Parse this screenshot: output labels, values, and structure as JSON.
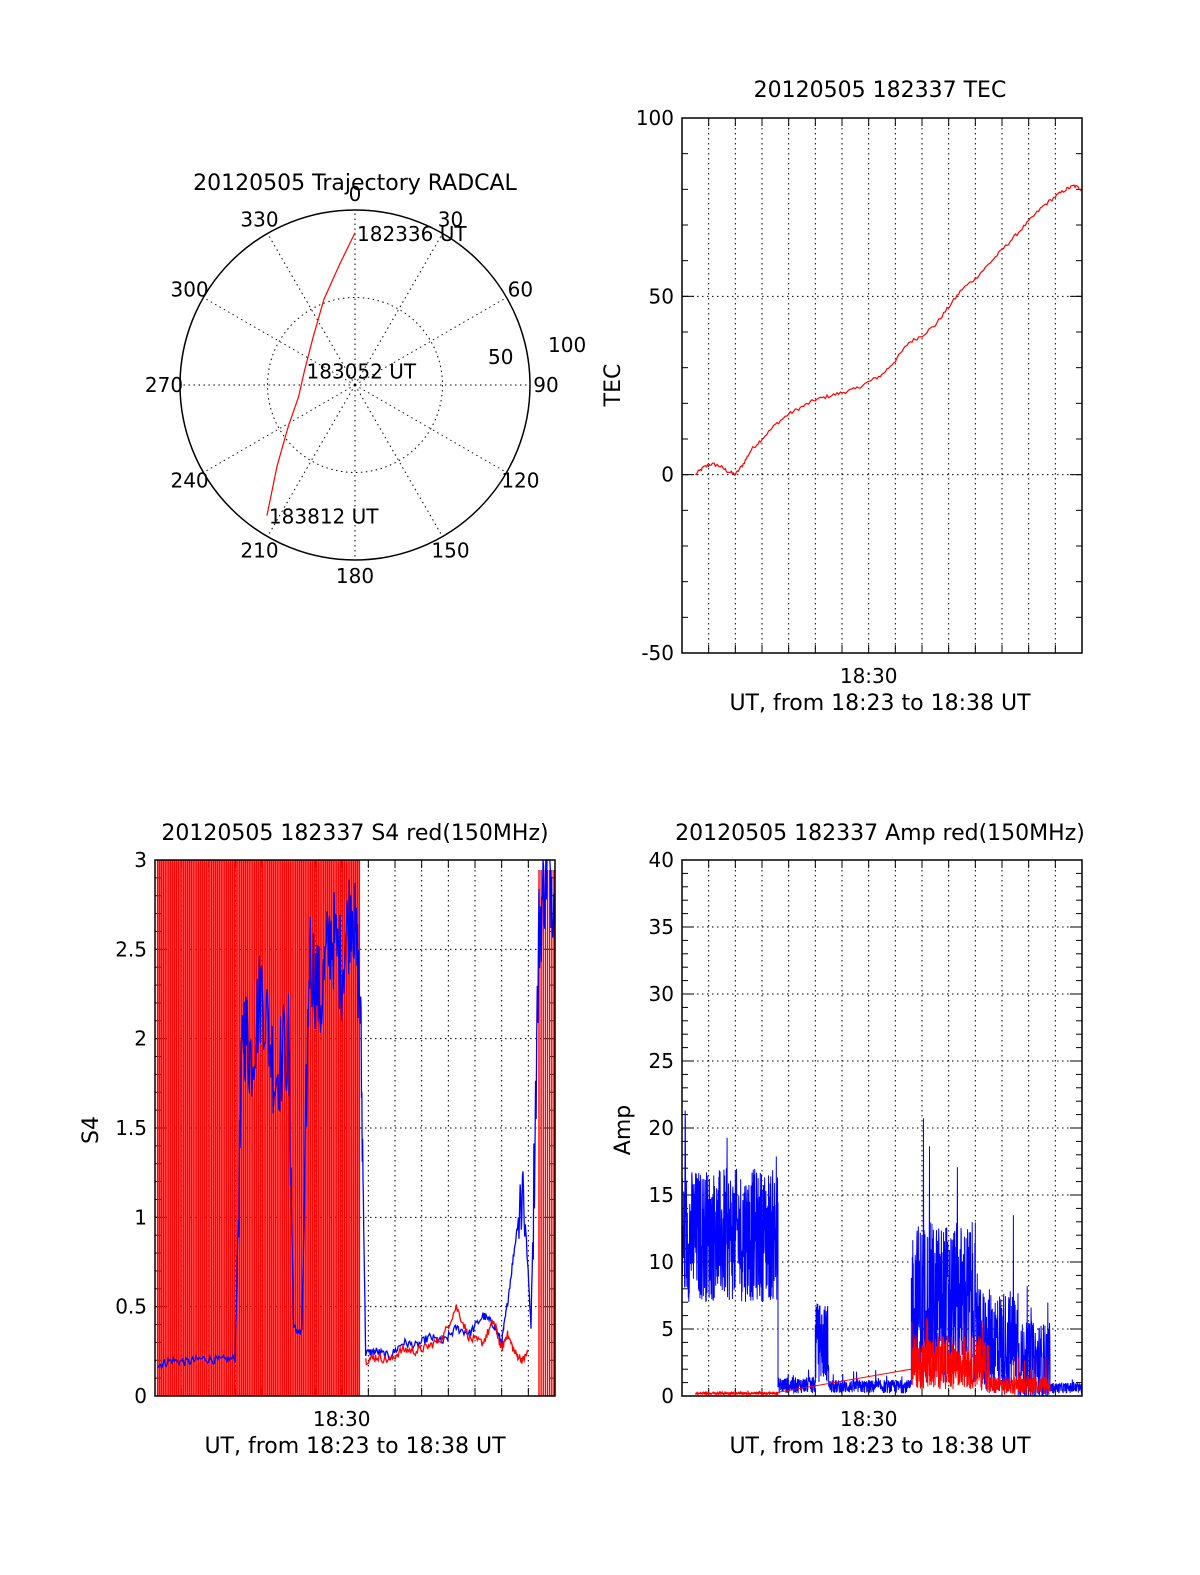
{
  "colors": {
    "red": "#ff0000",
    "blue": "#0000ff",
    "axis": "#000000"
  },
  "chart_data": [
    {
      "id": "trajectory",
      "type": "polar",
      "title": "20120505 Trajectory RADCAL",
      "angle_labels": [
        "0",
        "30",
        "60",
        "90",
        "120",
        "150",
        "180",
        "210",
        "240",
        "270",
        "300",
        "330"
      ],
      "radial_labels": [
        "50",
        "100"
      ],
      "radial_max": 100,
      "grid": true,
      "trajectory": {
        "color": "red",
        "points": [
          {
            "az": 0,
            "r": 87
          },
          {
            "az": 353,
            "r": 70
          },
          {
            "az": 340,
            "r": 52
          },
          {
            "az": 318,
            "r": 36
          },
          {
            "az": 286,
            "r": 30
          },
          {
            "az": 258,
            "r": 33
          },
          {
            "az": 238,
            "r": 45
          },
          {
            "az": 224,
            "r": 64
          },
          {
            "az": 214,
            "r": 90
          }
        ]
      },
      "annotations": [
        {
          "text": "182336 UT",
          "az": 0,
          "r": 87
        },
        {
          "text": "183052 UT",
          "az": 286,
          "r": 30
        },
        {
          "text": "183812 UT",
          "az": 214,
          "r": 90
        }
      ]
    },
    {
      "id": "tec",
      "type": "line",
      "title": "20120505 182337 TEC",
      "xlabel": "UT, from 18:23 to 18:38 UT",
      "ylabel": "TEC",
      "xlim": [
        0,
        15
      ],
      "ylim": [
        -50,
        100
      ],
      "yticks": [
        -50,
        0,
        50,
        100
      ],
      "xticks": [
        {
          "x": 7,
          "label": "18:30"
        }
      ],
      "grid": true,
      "series": [
        {
          "color": "red",
          "x": [
            0.5,
            0.8,
            1.1,
            1.4,
            1.7,
            2.0,
            2.3,
            2.6,
            3.0,
            3.5,
            4.0,
            4.5,
            5.0,
            5.5,
            6.0,
            6.5,
            7.0,
            7.5,
            8.0,
            8.5,
            9.0,
            9.5,
            10.0,
            10.5,
            11.0,
            11.5,
            12.0,
            12.5,
            13.0,
            13.5,
            14.0,
            14.4,
            14.7,
            15.0
          ],
          "y": [
            0,
            2,
            3,
            2.5,
            1,
            0,
            3,
            7,
            10,
            14,
            17,
            19,
            21,
            22,
            23,
            24,
            26,
            28,
            32,
            37,
            39,
            42,
            47,
            52,
            55,
            59,
            63,
            67,
            71,
            75,
            78,
            80,
            81,
            80
          ]
        }
      ]
    },
    {
      "id": "s4",
      "type": "line",
      "title": "20120505 182337 S4 red(150MHz)",
      "xlabel": "UT, from 18:23 to 18:38 UT",
      "ylabel": "S4",
      "xlim": [
        0,
        15
      ],
      "ylim": [
        0,
        3
      ],
      "yticks": [
        0,
        0.5,
        1,
        1.5,
        2,
        2.5,
        3
      ],
      "xticks": [
        {
          "x": 7,
          "label": "18:30"
        }
      ],
      "grid": true,
      "red_saturated_region": [
        0.0,
        7.7
      ],
      "series": [
        {
          "name": "blue",
          "color": "blue",
          "x": [
            0.1,
            0.6,
            1.2,
            1.8,
            2.4,
            3.0,
            3.3,
            3.6,
            4.0,
            4.5,
            5.0,
            5.2,
            5.5,
            5.8,
            6.2,
            6.6,
            7.0,
            7.4,
            7.7,
            7.9,
            8.3,
            8.8,
            9.3,
            9.8,
            10.3,
            10.8,
            11.3,
            11.8,
            12.3,
            12.7,
            13.0,
            13.2,
            13.5,
            13.8,
            14.1,
            14.4,
            14.7,
            15.0
          ],
          "y": [
            0.17,
            0.2,
            0.19,
            0.21,
            0.2,
            0.21,
            2.1,
            1.9,
            2.3,
            1.8,
            2.0,
            0.38,
            0.35,
            2.5,
            2.2,
            2.6,
            2.4,
            2.8,
            2.2,
            0.24,
            0.25,
            0.22,
            0.3,
            0.28,
            0.33,
            0.3,
            0.38,
            0.35,
            0.45,
            0.4,
            0.3,
            0.5,
            0.85,
            1.2,
            0.4,
            2.6,
            3.0,
            2.8
          ]
        },
        {
          "name": "red",
          "color": "red",
          "x": [
            7.9,
            8.3,
            8.8,
            9.3,
            9.8,
            10.3,
            10.8,
            11.3,
            11.8,
            12.3,
            12.7,
            13.0,
            13.2,
            13.5,
            13.8,
            14.0
          ],
          "y": [
            0.2,
            0.22,
            0.2,
            0.26,
            0.25,
            0.28,
            0.33,
            0.5,
            0.32,
            0.3,
            0.42,
            0.26,
            0.35,
            0.24,
            0.2,
            0.25
          ]
        }
      ]
    },
    {
      "id": "amp",
      "type": "line",
      "title": "20120505 182337 Amp red(150MHz)",
      "xlabel": "UT, from 18:23 to 18:38 UT",
      "ylabel": "Amp",
      "xlim": [
        0,
        15
      ],
      "ylim": [
        0,
        40
      ],
      "yticks": [
        0,
        5,
        10,
        15,
        20,
        25,
        30,
        35,
        40
      ],
      "xticks": [
        {
          "x": 7,
          "label": "18:30"
        }
      ],
      "grid": true,
      "series": [
        {
          "name": "blue",
          "color": "blue",
          "segments": [
            {
              "x": [
                0,
                3.6
              ],
              "center": 12,
              "amp": 5,
              "peak": 22
            },
            {
              "x": [
                3.6,
                5.0
              ],
              "center": 0.8,
              "amp": 0.6,
              "peak": 2
            },
            {
              "x": [
                5.0,
                5.5
              ],
              "center": 4,
              "amp": 3,
              "peak": 7.5
            },
            {
              "x": [
                5.5,
                8.6
              ],
              "center": 0.7,
              "amp": 0.5,
              "peak": 2
            },
            {
              "x": [
                8.6,
                11.0
              ],
              "center": 7,
              "amp": 6,
              "peak": 22
            },
            {
              "x": [
                11.0,
                12.6
              ],
              "center": 4,
              "amp": 4,
              "peak": 14
            },
            {
              "x": [
                12.6,
                13.8
              ],
              "center": 2.5,
              "amp": 3,
              "peak": 9
            },
            {
              "x": [
                13.8,
                15.0
              ],
              "center": 0.6,
              "amp": 0.4,
              "peak": 1.5
            }
          ]
        },
        {
          "name": "red",
          "color": "red",
          "segments": [
            {
              "x": [
                0.5,
                3.6
              ],
              "center": 0.2,
              "amp": 0.1,
              "peak": 0.4
            },
            {
              "x": [
                8.6,
                11.5
              ],
              "center": 2.5,
              "amp": 2,
              "peak": 6
            },
            {
              "x": [
                11.5,
                13.8
              ],
              "center": 0.8,
              "amp": 0.7,
              "peak": 3
            }
          ]
        }
      ]
    }
  ]
}
